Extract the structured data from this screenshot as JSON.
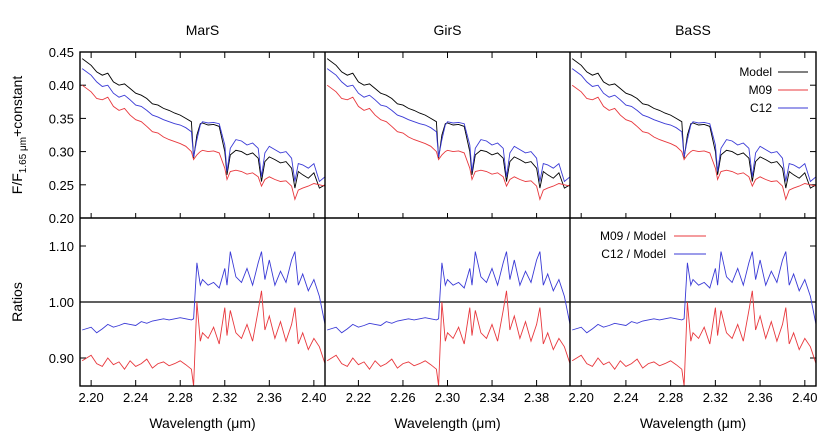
{
  "chart_data": {
    "type": "line",
    "panel_titles": [
      "MarS",
      "GirS",
      "BaSS"
    ],
    "xlabel": "Wavelength (μm)",
    "ylabel_top_parts": {
      "base": "F/F",
      "subscript": "1.65 μm",
      "suffix": "+constant"
    },
    "ylabel_bottom": "Ratios",
    "xlim": [
      2.19,
      2.41
    ],
    "xticks_panels": [
      [
        "2.20",
        "2.24",
        "2.28",
        "2.32",
        "2.36",
        "2.40"
      ],
      [
        "2.22",
        "2.26",
        "2.30",
        "2.34",
        "2.38"
      ],
      [
        "2.20",
        "2.24",
        "2.28",
        "2.32",
        "2.36",
        "2.40"
      ]
    ],
    "top_ylim": [
      0.2,
      0.45
    ],
    "top_yticks": [
      "0.45",
      "0.40",
      "0.35",
      "0.30",
      "0.25",
      "0.20"
    ],
    "bottom_ylim": [
      0.85,
      1.15
    ],
    "bottom_yticks": [
      "1.10",
      "1.00",
      "0.90"
    ],
    "reference_line": 1.0,
    "top_legend": [
      {
        "name": "Model",
        "color": "#000000"
      },
      {
        "name": "M09",
        "color": "#e8383d"
      },
      {
        "name": "C12",
        "color": "#3a3ad6"
      }
    ],
    "bottom_legend": [
      {
        "name": "M09 / Model",
        "color": "#e8383d"
      },
      {
        "name": "C12 / Model",
        "color": "#3a3ad6"
      }
    ],
    "series_top": {
      "x": [
        2.192,
        2.2,
        2.205,
        2.21,
        2.215,
        2.22,
        2.225,
        2.23,
        2.235,
        2.24,
        2.245,
        2.25,
        2.255,
        2.26,
        2.265,
        2.27,
        2.275,
        2.28,
        2.285,
        2.29,
        2.292,
        2.295,
        2.298,
        2.3,
        2.305,
        2.31,
        2.315,
        2.32,
        2.322,
        2.325,
        2.33,
        2.335,
        2.34,
        2.345,
        2.35,
        2.353,
        2.356,
        2.36,
        2.365,
        2.37,
        2.375,
        2.38,
        2.383,
        2.386,
        2.39,
        2.395,
        2.4,
        2.405,
        2.41
      ],
      "Model": [
        0.44,
        0.43,
        0.42,
        0.415,
        0.418,
        0.405,
        0.4,
        0.402,
        0.395,
        0.388,
        0.385,
        0.38,
        0.372,
        0.37,
        0.365,
        0.362,
        0.358,
        0.355,
        0.35,
        0.345,
        0.29,
        0.325,
        0.342,
        0.343,
        0.34,
        0.341,
        0.338,
        0.3,
        0.265,
        0.295,
        0.302,
        0.3,
        0.295,
        0.298,
        0.29,
        0.255,
        0.285,
        0.292,
        0.288,
        0.283,
        0.285,
        0.275,
        0.245,
        0.27,
        0.265,
        0.26,
        0.268,
        0.245,
        0.25
      ],
      "M09": [
        0.4,
        0.39,
        0.38,
        0.378,
        0.382,
        0.368,
        0.362,
        0.365,
        0.355,
        0.348,
        0.345,
        0.338,
        0.33,
        0.328,
        0.322,
        0.318,
        0.315,
        0.312,
        0.308,
        0.3,
        0.288,
        0.295,
        0.3,
        0.302,
        0.3,
        0.301,
        0.298,
        0.275,
        0.258,
        0.27,
        0.272,
        0.27,
        0.266,
        0.268,
        0.262,
        0.248,
        0.258,
        0.262,
        0.258,
        0.255,
        0.256,
        0.248,
        0.228,
        0.242,
        0.245,
        0.248,
        0.252,
        0.25,
        0.248
      ],
      "C12": [
        0.425,
        0.415,
        0.405,
        0.398,
        0.4,
        0.388,
        0.382,
        0.385,
        0.378,
        0.37,
        0.368,
        0.362,
        0.355,
        0.352,
        0.348,
        0.345,
        0.342,
        0.34,
        0.336,
        0.33,
        0.292,
        0.318,
        0.34,
        0.345,
        0.343,
        0.344,
        0.342,
        0.31,
        0.27,
        0.305,
        0.318,
        0.316,
        0.31,
        0.313,
        0.305,
        0.262,
        0.298,
        0.308,
        0.303,
        0.298,
        0.3,
        0.29,
        0.255,
        0.282,
        0.28,
        0.275,
        0.282,
        0.255,
        0.262
      ]
    },
    "series_ratio": {
      "x": [
        2.192,
        2.2,
        2.205,
        2.21,
        2.215,
        2.22,
        2.225,
        2.23,
        2.235,
        2.24,
        2.245,
        2.25,
        2.255,
        2.26,
        2.265,
        2.27,
        2.275,
        2.28,
        2.285,
        2.29,
        2.292,
        2.295,
        2.298,
        2.3,
        2.305,
        2.31,
        2.315,
        2.32,
        2.322,
        2.325,
        2.33,
        2.335,
        2.34,
        2.345,
        2.35,
        2.353,
        2.356,
        2.36,
        2.365,
        2.37,
        2.375,
        2.38,
        2.383,
        2.386,
        2.39,
        2.395,
        2.4,
        2.405,
        2.41
      ],
      "M09 / Model": [
        0.895,
        0.905,
        0.89,
        0.885,
        0.9,
        0.888,
        0.893,
        0.88,
        0.895,
        0.885,
        0.89,
        0.898,
        0.882,
        0.89,
        0.893,
        0.886,
        0.89,
        0.895,
        0.888,
        0.88,
        0.85,
        1.0,
        0.93,
        0.945,
        0.935,
        0.955,
        0.925,
        0.99,
        0.94,
        0.985,
        0.945,
        0.935,
        0.96,
        0.93,
        0.985,
        1.02,
        0.95,
        0.975,
        0.935,
        0.965,
        0.93,
        0.96,
        0.99,
        0.925,
        0.945,
        0.915,
        0.935,
        0.92,
        0.89
      ],
      "C12 / Model": [
        0.95,
        0.955,
        0.945,
        0.952,
        0.96,
        0.955,
        0.958,
        0.962,
        0.96,
        0.958,
        0.965,
        0.962,
        0.966,
        0.968,
        0.97,
        0.968,
        0.97,
        0.972,
        0.97,
        0.968,
        0.97,
        1.07,
        1.03,
        1.04,
        1.03,
        1.035,
        1.025,
        1.06,
        1.03,
        1.09,
        1.045,
        1.035,
        1.06,
        1.03,
        1.07,
        1.09,
        1.04,
        1.075,
        1.03,
        1.055,
        1.035,
        1.075,
        1.09,
        1.03,
        1.05,
        1.02,
        1.04,
        1.01,
        0.96
      ]
    }
  }
}
